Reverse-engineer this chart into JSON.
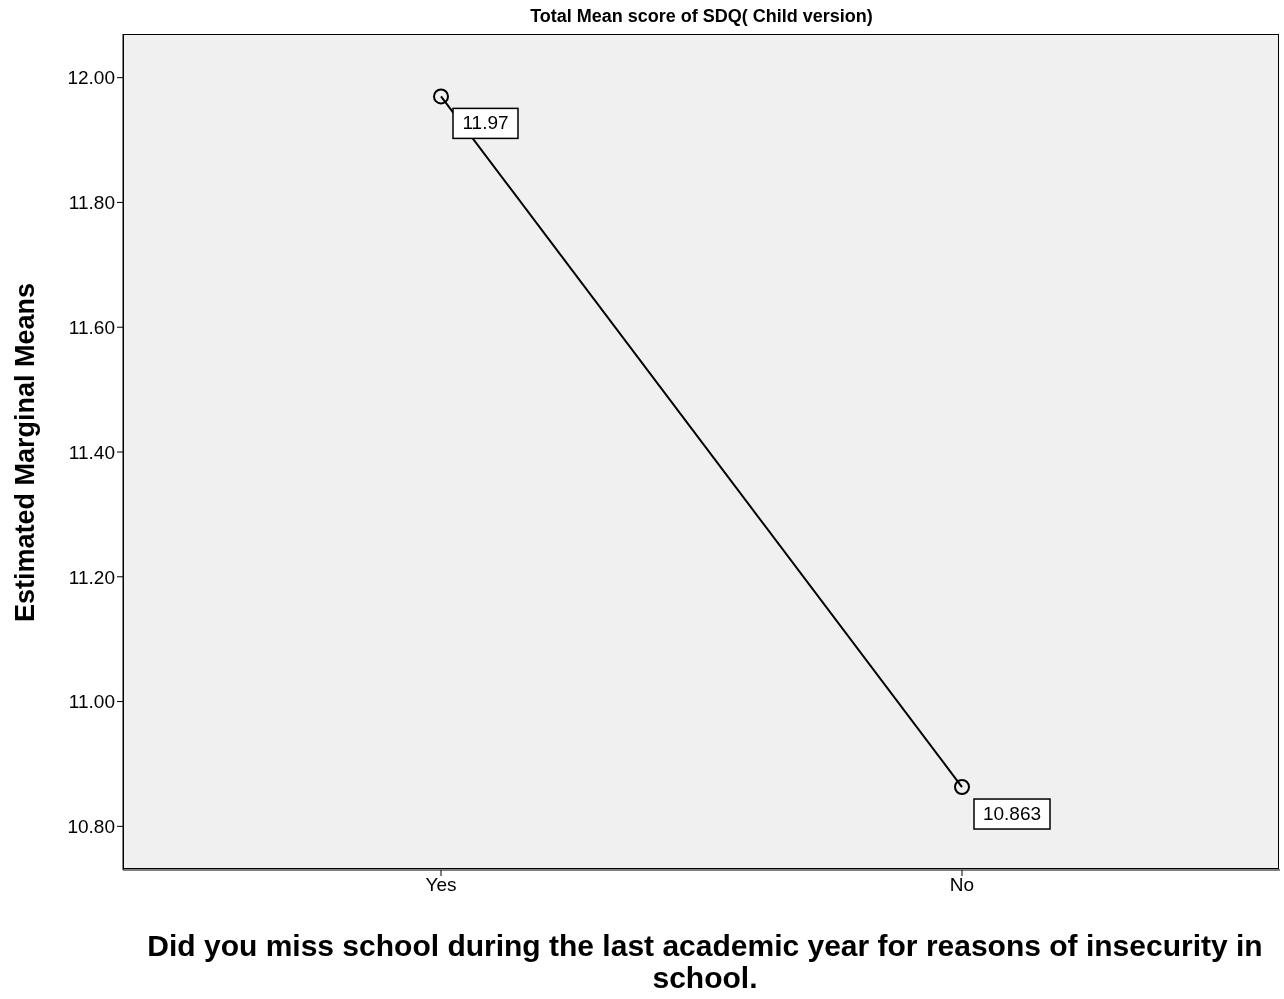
{
  "chart_data": {
    "type": "line",
    "title": "Total Mean score of SDQ( Child version)",
    "xlabel": "Did you miss school during the last academic year for reasons of insecurity in school.",
    "ylabel": "Estimated Marginal Means",
    "categories": [
      "Yes",
      "No"
    ],
    "series": [
      {
        "color": "#000000",
        "values": [
          11.97,
          10.863
        ]
      }
    ],
    "ylim": [
      10.73,
      12.07
    ],
    "yticks": [
      {
        "value": 10.8,
        "label": "10.80"
      },
      {
        "value": 11,
        "label": "11.00"
      },
      {
        "value": 11.2,
        "label": "11.20"
      },
      {
        "value": 11.4,
        "label": "11.40"
      },
      {
        "value": 11.6,
        "label": "11.60"
      },
      {
        "value": 11.8,
        "label": "11.80"
      },
      {
        "value": 12,
        "label": "12.00"
      }
    ],
    "data_labels": true,
    "marker": "circle",
    "grid": false,
    "legend": false
  }
}
